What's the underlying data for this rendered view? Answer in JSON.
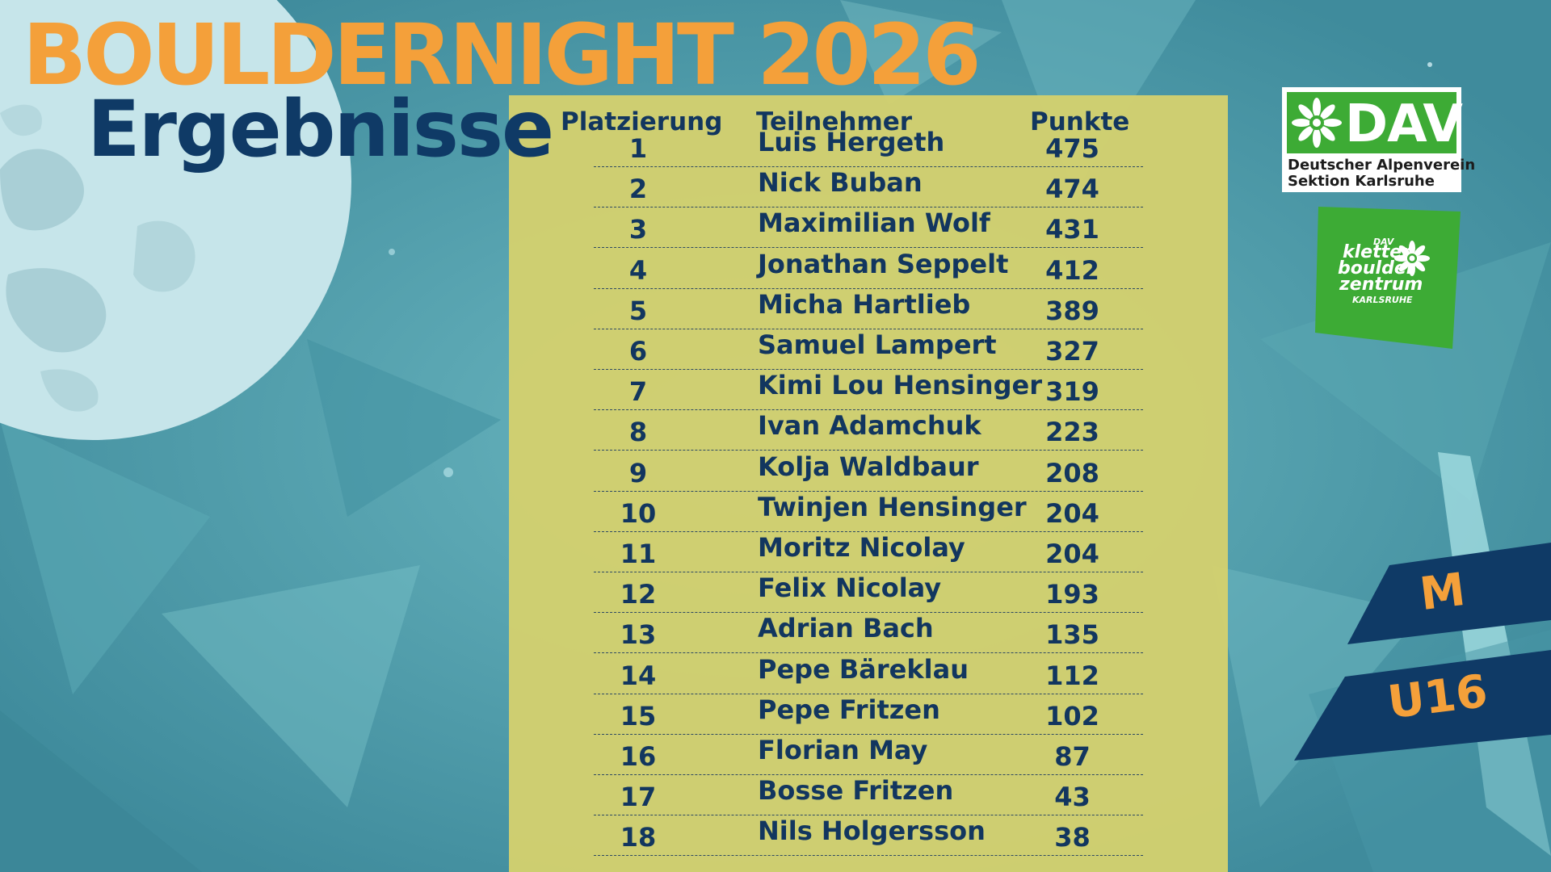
{
  "header": {
    "title": "BOULDERNIGHT 2026",
    "subtitle": "Ergebnisse"
  },
  "table": {
    "columns": [
      "Platzierung",
      "Teilnehmer",
      "Punkte"
    ],
    "rows": [
      {
        "rank": "1",
        "name": "Luis Hergeth",
        "points": "475"
      },
      {
        "rank": "2",
        "name": "Nick Buban",
        "points": "474"
      },
      {
        "rank": "3",
        "name": "Maximilian Wolf",
        "points": "431"
      },
      {
        "rank": "4",
        "name": "Jonathan Seppelt",
        "points": "412"
      },
      {
        "rank": "5",
        "name": "Micha Hartlieb",
        "points": "389"
      },
      {
        "rank": "6",
        "name": "Samuel Lampert",
        "points": "327"
      },
      {
        "rank": "7",
        "name": "Kimi Lou Hensinger",
        "points": "319"
      },
      {
        "rank": "8",
        "name": "Ivan Adamchuk",
        "points": "223"
      },
      {
        "rank": "9",
        "name": "Kolja Waldbaur",
        "points": "208"
      },
      {
        "rank": "10",
        "name": "Twinjen Hensinger",
        "points": "204"
      },
      {
        "rank": "11",
        "name": "Moritz Nicolay",
        "points": "204"
      },
      {
        "rank": "12",
        "name": "Felix Nicolay",
        "points": "193"
      },
      {
        "rank": "13",
        "name": "Adrian Bach",
        "points": "135"
      },
      {
        "rank": "14",
        "name": "Pepe Bäreklau",
        "points": "112"
      },
      {
        "rank": "15",
        "name": "Pepe Fritzen",
        "points": "102"
      },
      {
        "rank": "16",
        "name": "Florian May",
        "points": "87"
      },
      {
        "rank": "17",
        "name": "Bosse Fritzen",
        "points": "43"
      },
      {
        "rank": "18",
        "name": "Nils Holgersson",
        "points": "38"
      }
    ]
  },
  "logos": {
    "dav": {
      "name": "DAV",
      "line1": "Deutscher Alpenverein",
      "line2": "Sektion Karlsruhe",
      "icon": "edelweiss-icon"
    },
    "kbz": {
      "tag": "DAV",
      "line1": "kletter",
      "line2": "boulder",
      "line3": "zentrum",
      "line4": "KARLSRUHE",
      "icon": "edelweiss-icon"
    }
  },
  "category": {
    "gender": "M",
    "age": "U16"
  },
  "colors": {
    "title": "#f4a03a",
    "subtitle": "#0f3a66",
    "panel": "#d3d06e",
    "dav_green": "#3dab35",
    "banner": "#0f3a66"
  }
}
